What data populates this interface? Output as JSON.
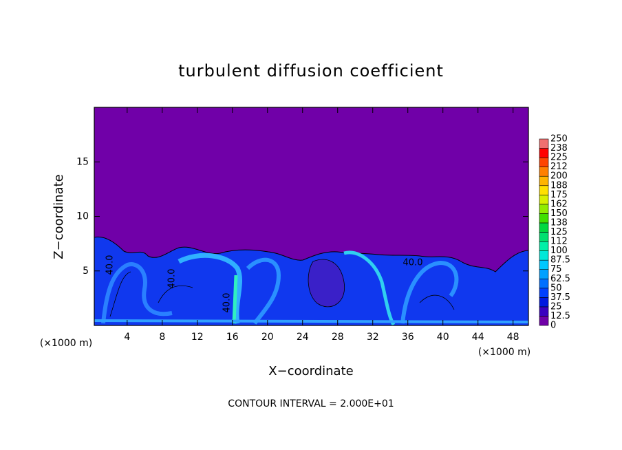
{
  "chart_data": {
    "type": "contourf",
    "title": "turbulent diffusion coefficient",
    "xlabel": "X−coordinate",
    "ylabel": "Z−coordinate",
    "x_unit": "(×1000 m)",
    "x_unit_right": "(×1000 m)",
    "footer": "CONTOUR INTERVAL = 2.000E+01",
    "xlim": [
      0.25,
      49.75
    ],
    "ylim": [
      0,
      20
    ],
    "xticks": [
      4,
      8,
      12,
      16,
      20,
      24,
      28,
      32,
      36,
      40,
      44,
      48
    ],
    "yticks": [
      5,
      10,
      15
    ],
    "levels": [
      0,
      12.5,
      25,
      37.5,
      50,
      62.5,
      75,
      87.5,
      {
        "value": 112.5,
        "label": "112"
      },
      {
        "value": 100,
        "label": "100"
      }
    ],
    "colorbar": {
      "levels": [
        0,
        12.5,
        25,
        37.5,
        50,
        62.5,
        75,
        87.5,
        100,
        {
          "value": 112.5,
          "label": "112"
        },
        125,
        {
          "value": 137.5,
          "label": "138"
        },
        150,
        {
          "value": 162.5,
          "label": "162"
        },
        175,
        {
          "value": 187.5,
          "label": "188"
        },
        200,
        {
          "value": 212.5,
          "label": "212"
        },
        225,
        {
          "value": 237.5,
          "label": "238"
        },
        250
      ],
      "colors": [
        "#7000a8",
        "#3a00c0",
        "#0018e0",
        "#0040ff",
        "#0070ff",
        "#00a0ff",
        "#00c8ff",
        "#00e8d8",
        "#00f0a8",
        "#00e070",
        "#00d840",
        "#40e000",
        "#90ec00",
        "#d8f000",
        "#ffe000",
        "#ffb400",
        "#ff8000",
        "#ff4400",
        "#ff0000",
        "#f07070"
      ]
    },
    "contour_labels": [
      "40.0",
      "40.0",
      "40.0",
      "40.0"
    ]
  }
}
